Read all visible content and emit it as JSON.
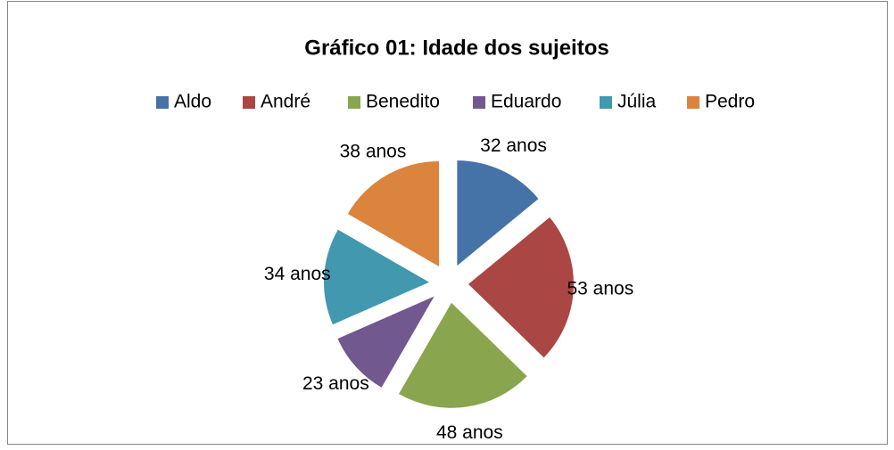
{
  "chart_data": {
    "type": "pie",
    "title": "Gráfico 01: Idade dos sujeitos",
    "categories": [
      "Aldo",
      "André",
      "Benedito",
      "Eduardo",
      "Júlia",
      "Pedro"
    ],
    "values": [
      32,
      53,
      48,
      23,
      34,
      38
    ],
    "value_labels": [
      "32 anos",
      "53 anos",
      "48 anos",
      "23 anos",
      "34 anos",
      "38 anos"
    ],
    "colors": [
      "#4572a7",
      "#aa4643",
      "#89a54e",
      "#71588f",
      "#4198af",
      "#db843d"
    ],
    "legend": "top"
  }
}
